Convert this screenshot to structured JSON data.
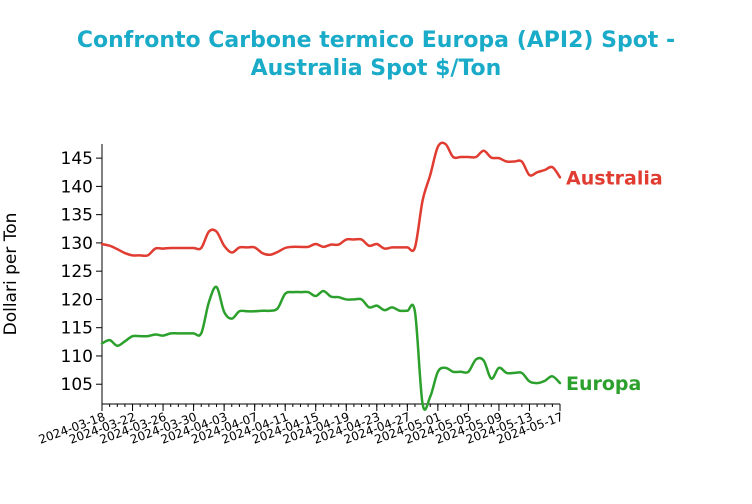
{
  "chart_data": {
    "type": "line",
    "title_line1": "Confronto Carbone termico Europa (API2) Spot -",
    "title_line2": "Australia Spot $/Ton",
    "xlabel": "",
    "ylabel": "Dollari per Ton",
    "ylim": [
      101.5,
      147.5
    ],
    "yticks": [
      105,
      110,
      115,
      120,
      125,
      130,
      135,
      140,
      145
    ],
    "x_start": "2024-03-18",
    "x_end": "2024-05-17",
    "xticks": [
      "2024-03-18",
      "2024-03-22",
      "2024-03-26",
      "2024-03-30",
      "2024-04-03",
      "2024-04-07",
      "2024-04-11",
      "2024-04-15",
      "2024-04-19",
      "2024-04-23",
      "2024-04-27",
      "2024-05-01",
      "2024-05-05",
      "2024-05-09",
      "2024-05-13",
      "2024-05-17"
    ],
    "grid": false,
    "series": [
      {
        "name": "Australia",
        "color": "#e03c31",
        "points": [
          [
            "2024-03-18",
            129.8
          ],
          [
            "2024-03-19",
            129.5
          ],
          [
            "2024-03-20",
            128.9
          ],
          [
            "2024-03-21",
            128.2
          ],
          [
            "2024-03-22",
            127.8
          ],
          [
            "2024-03-23",
            127.8
          ],
          [
            "2024-03-24",
            127.8
          ],
          [
            "2024-03-25",
            129.0
          ],
          [
            "2024-03-26",
            129.0
          ],
          [
            "2024-03-27",
            129.1
          ],
          [
            "2024-03-28",
            129.1
          ],
          [
            "2024-03-29",
            129.1
          ],
          [
            "2024-03-30",
            129.1
          ],
          [
            "2024-03-31",
            129.1
          ],
          [
            "2024-04-01",
            132.0
          ],
          [
            "2024-04-02",
            132.0
          ],
          [
            "2024-04-03",
            129.5
          ],
          [
            "2024-04-04",
            128.3
          ],
          [
            "2024-04-05",
            129.2
          ],
          [
            "2024-04-06",
            129.2
          ],
          [
            "2024-04-07",
            129.2
          ],
          [
            "2024-04-08",
            128.2
          ],
          [
            "2024-04-09",
            127.9
          ],
          [
            "2024-04-10",
            128.4
          ],
          [
            "2024-04-11",
            129.1
          ],
          [
            "2024-04-12",
            129.3
          ],
          [
            "2024-04-13",
            129.3
          ],
          [
            "2024-04-14",
            129.3
          ],
          [
            "2024-04-15",
            129.8
          ],
          [
            "2024-04-16",
            129.3
          ],
          [
            "2024-04-17",
            129.7
          ],
          [
            "2024-04-18",
            129.7
          ],
          [
            "2024-04-19",
            130.6
          ],
          [
            "2024-04-20",
            130.6
          ],
          [
            "2024-04-21",
            130.6
          ],
          [
            "2024-04-22",
            129.5
          ],
          [
            "2024-04-23",
            129.8
          ],
          [
            "2024-04-24",
            129.0
          ],
          [
            "2024-04-25",
            129.2
          ],
          [
            "2024-04-26",
            129.2
          ],
          [
            "2024-04-27",
            129.2
          ],
          [
            "2024-04-28",
            129.2
          ],
          [
            "2024-04-29",
            137.5
          ],
          [
            "2024-04-30",
            142.0
          ],
          [
            "2024-05-01",
            147.0
          ],
          [
            "2024-05-02",
            147.5
          ],
          [
            "2024-05-03",
            145.2
          ],
          [
            "2024-05-04",
            145.2
          ],
          [
            "2024-05-05",
            145.2
          ],
          [
            "2024-05-06",
            145.2
          ],
          [
            "2024-05-07",
            146.3
          ],
          [
            "2024-05-08",
            145.1
          ],
          [
            "2024-05-09",
            145.0
          ],
          [
            "2024-05-10",
            144.4
          ],
          [
            "2024-05-11",
            144.4
          ],
          [
            "2024-05-12",
            144.4
          ],
          [
            "2024-05-13",
            142.0
          ],
          [
            "2024-05-14",
            142.5
          ],
          [
            "2024-05-15",
            142.9
          ],
          [
            "2024-05-16",
            143.4
          ],
          [
            "2024-05-17",
            141.6
          ]
        ]
      },
      {
        "name": "Europa",
        "color": "#2ca02c",
        "points": [
          [
            "2024-03-18",
            112.2
          ],
          [
            "2024-03-19",
            112.8
          ],
          [
            "2024-03-20",
            111.8
          ],
          [
            "2024-03-21",
            112.6
          ],
          [
            "2024-03-22",
            113.5
          ],
          [
            "2024-03-23",
            113.5
          ],
          [
            "2024-03-24",
            113.5
          ],
          [
            "2024-03-25",
            113.8
          ],
          [
            "2024-03-26",
            113.6
          ],
          [
            "2024-03-27",
            114.0
          ],
          [
            "2024-03-28",
            114.0
          ],
          [
            "2024-03-29",
            114.0
          ],
          [
            "2024-03-30",
            114.0
          ],
          [
            "2024-03-31",
            114.0
          ],
          [
            "2024-04-01",
            119.5
          ],
          [
            "2024-04-02",
            122.2
          ],
          [
            "2024-04-03",
            117.8
          ],
          [
            "2024-04-04",
            116.6
          ],
          [
            "2024-04-05",
            117.9
          ],
          [
            "2024-04-06",
            117.9
          ],
          [
            "2024-04-07",
            117.9
          ],
          [
            "2024-04-08",
            118.0
          ],
          [
            "2024-04-09",
            118.0
          ],
          [
            "2024-04-10",
            118.4
          ],
          [
            "2024-04-11",
            121.0
          ],
          [
            "2024-04-12",
            121.3
          ],
          [
            "2024-04-13",
            121.3
          ],
          [
            "2024-04-14",
            121.3
          ],
          [
            "2024-04-15",
            120.6
          ],
          [
            "2024-04-16",
            121.5
          ],
          [
            "2024-04-17",
            120.5
          ],
          [
            "2024-04-18",
            120.4
          ],
          [
            "2024-04-19",
            120.0
          ],
          [
            "2024-04-20",
            120.0
          ],
          [
            "2024-04-21",
            120.0
          ],
          [
            "2024-04-22",
            118.6
          ],
          [
            "2024-04-23",
            118.9
          ],
          [
            "2024-04-24",
            118.1
          ],
          [
            "2024-04-25",
            118.6
          ],
          [
            "2024-04-26",
            118.0
          ],
          [
            "2024-04-27",
            118.0
          ],
          [
            "2024-04-28",
            117.8
          ],
          [
            "2024-04-29",
            101.5
          ],
          [
            "2024-04-30",
            102.8
          ],
          [
            "2024-05-01",
            107.2
          ],
          [
            "2024-05-02",
            107.9
          ],
          [
            "2024-05-03",
            107.2
          ],
          [
            "2024-05-04",
            107.2
          ],
          [
            "2024-05-05",
            107.2
          ],
          [
            "2024-05-06",
            109.4
          ],
          [
            "2024-05-07",
            109.2
          ],
          [
            "2024-05-08",
            106.0
          ],
          [
            "2024-05-09",
            107.9
          ],
          [
            "2024-05-10",
            107.0
          ],
          [
            "2024-05-11",
            107.0
          ],
          [
            "2024-05-12",
            107.0
          ],
          [
            "2024-05-13",
            105.5
          ],
          [
            "2024-05-14",
            105.2
          ],
          [
            "2024-05-15",
            105.6
          ],
          [
            "2024-05-16",
            106.4
          ],
          [
            "2024-05-17",
            105.2
          ]
        ]
      }
    ]
  }
}
